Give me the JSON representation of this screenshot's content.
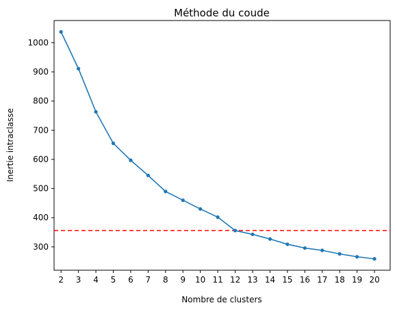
{
  "chart_data": {
    "type": "line",
    "title": "Méthode du coude",
    "xlabel": "Nombre de clusters",
    "ylabel": "Inertie intraclasse",
    "x": [
      2,
      3,
      4,
      5,
      6,
      7,
      8,
      9,
      10,
      11,
      12,
      13,
      14,
      15,
      16,
      17,
      18,
      19,
      20
    ],
    "series": [
      {
        "values": [
          1037,
          911,
          763,
          655,
          597,
          545,
          490,
          460,
          430,
          402,
          356,
          343,
          327,
          309,
          296,
          288,
          276,
          266,
          259
        ],
        "color": "#1f77b4",
        "marker": "circle"
      }
    ],
    "reference_line": {
      "y": 356,
      "color": "#ff0000",
      "style": "dashed"
    },
    "xticks": [
      "2",
      "3",
      "4",
      "5",
      "6",
      "7",
      "8",
      "9",
      "10",
      "11",
      "12",
      "13",
      "14",
      "15",
      "16",
      "17",
      "18",
      "19",
      "20"
    ],
    "yticks": [
      300,
      400,
      500,
      600,
      700,
      800,
      900,
      1000
    ],
    "xlim": [
      1.6,
      20.9
    ],
    "ylim": [
      220,
      1076
    ],
    "grid": false,
    "legend": false
  }
}
